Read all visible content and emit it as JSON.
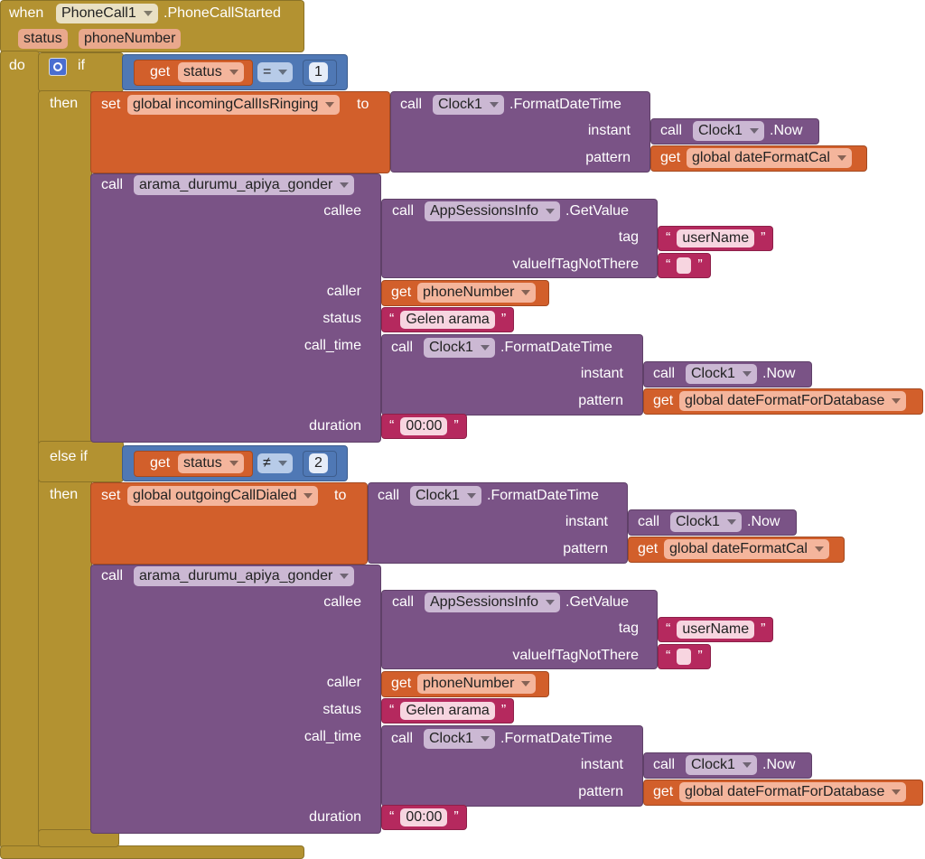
{
  "event": {
    "when": "when",
    "component": "PhoneCall1",
    "event_name": ".PhoneCallStarted",
    "parameters": [
      "status",
      "phoneNumber"
    ],
    "do": "do"
  },
  "branches": [
    {
      "keyword": "if",
      "condition": {
        "get": "get",
        "variable": "status",
        "operator": "=",
        "operand": 1
      },
      "then": "then",
      "set": {
        "set": "set",
        "variable": "global incomingCallIsRinging",
        "to": "to",
        "value": {
          "call": "call",
          "component": "Clock1",
          "method": ".FormatDateTime",
          "instant_label": "instant",
          "instant": {
            "call": "call",
            "component": "Clock1",
            "method": ".Now"
          },
          "pattern_label": "pattern",
          "pattern": {
            "get": "get",
            "variable": "global dateFormatCal"
          }
        }
      },
      "procedure": {
        "call": "call",
        "name": "arama_durumu_apiya_gonder",
        "callee": {
          "label": "callee",
          "call": "call",
          "component": "AppSessionsInfo",
          "method": ".GetValue",
          "tag_label": "tag",
          "tag": {
            "open": "“",
            "text": "userName",
            "close": "”"
          },
          "default_label": "valueIfTagNotThere",
          "default": {
            "open": "“",
            "close": "”"
          }
        },
        "caller": {
          "label": "caller",
          "get": "get",
          "variable": "phoneNumber"
        },
        "status": {
          "label": "status",
          "open": "“",
          "text": "Gelen arama",
          "close": "”"
        },
        "call_time": {
          "label": "call_time",
          "call": "call",
          "component": "Clock1",
          "method": ".FormatDateTime",
          "instant_label": "instant",
          "instant": {
            "call": "call",
            "component": "Clock1",
            "method": ".Now"
          },
          "pattern_label": "pattern",
          "pattern": {
            "get": "get",
            "variable": "global dateFormatForDatabase"
          }
        },
        "duration": {
          "label": "duration",
          "open": "“",
          "text": "00:00",
          "close": "”"
        }
      }
    },
    {
      "keyword": "else if",
      "condition": {
        "get": "get",
        "variable": "status",
        "operator": "≠",
        "operand": 2
      },
      "then": "then",
      "set": {
        "set": "set",
        "variable": "global outgoingCallDialed",
        "to": "to",
        "value": {
          "call": "call",
          "component": "Clock1",
          "method": ".FormatDateTime",
          "instant_label": "instant",
          "instant": {
            "call": "call",
            "component": "Clock1",
            "method": ".Now"
          },
          "pattern_label": "pattern",
          "pattern": {
            "get": "get",
            "variable": "global dateFormatCal"
          }
        }
      },
      "procedure": {
        "call": "call",
        "name": "arama_durumu_apiya_gonder",
        "callee": {
          "label": "callee",
          "call": "call",
          "component": "AppSessionsInfo",
          "method": ".GetValue",
          "tag_label": "tag",
          "tag": {
            "open": "“",
            "text": "userName",
            "close": "”"
          },
          "default_label": "valueIfTagNotThere",
          "default": {
            "open": "“",
            "close": "”"
          }
        },
        "caller": {
          "label": "caller",
          "get": "get",
          "variable": "phoneNumber"
        },
        "status": {
          "label": "status",
          "open": "“",
          "text": "Gelen arama",
          "close": "”"
        },
        "call_time": {
          "label": "call_time",
          "call": "call",
          "component": "Clock1",
          "method": ".FormatDateTime",
          "instant_label": "instant",
          "instant": {
            "call": "call",
            "component": "Clock1",
            "method": ".Now"
          },
          "pattern_label": "pattern",
          "pattern": {
            "get": "get",
            "variable": "global dateFormatForDatabase"
          }
        },
        "duration": {
          "label": "duration",
          "open": "“",
          "text": "00:00",
          "close": "”"
        }
      }
    }
  ]
}
